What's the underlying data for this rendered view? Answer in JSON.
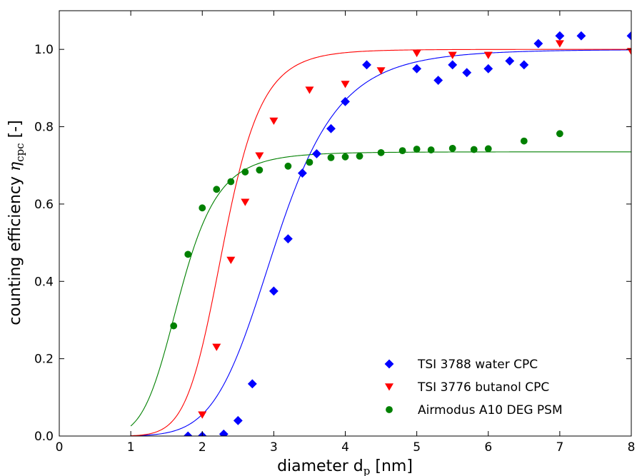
{
  "chart_data": {
    "type": "scatter",
    "xlabel": "diameter d",
    "xlabel_sub": "p",
    "xlabel_unit": " [nm]",
    "ylabel": "counting efficiency ",
    "ylabel_sym": "η",
    "ylabel_sub": "cpc",
    "ylabel_unit": " [-]",
    "xlim": [
      0,
      8
    ],
    "ylim": [
      0,
      1.1
    ],
    "xticks": [
      0,
      1,
      2,
      3,
      4,
      5,
      6,
      7,
      8
    ],
    "yticks": [
      0.0,
      0.2,
      0.4,
      0.6,
      0.8,
      1.0
    ],
    "xtick_labels": [
      "0",
      "1",
      "2",
      "3",
      "4",
      "5",
      "6",
      "7",
      "8"
    ],
    "ytick_labels": [
      "0.0",
      "0.2",
      "0.4",
      "0.6",
      "0.8",
      "1.0"
    ],
    "legend_position": "bottom-right",
    "series": [
      {
        "name": "TSI 3788 water CPC",
        "marker": "diamond",
        "color": "#0000ff",
        "x": [
          1.8,
          2.0,
          2.3,
          2.5,
          2.7,
          3.0,
          3.2,
          3.4,
          3.6,
          3.8,
          4.0,
          4.3,
          5.0,
          5.3,
          5.5,
          5.7,
          6.0,
          6.3,
          6.5,
          6.7,
          7.0,
          7.3,
          8.0
        ],
        "y": [
          0.0,
          0.0,
          0.005,
          0.04,
          0.135,
          0.375,
          0.51,
          0.68,
          0.73,
          0.795,
          0.865,
          0.96,
          0.95,
          0.92,
          0.96,
          0.94,
          0.95,
          0.97,
          0.96,
          1.015,
          1.035,
          1.035,
          1.035
        ],
        "fit": {
          "a": 1.0,
          "d50": 3.03,
          "k": 6.8
        }
      },
      {
        "name": "TSI 3776 butanol CPC",
        "marker": "triangle-down",
        "color": "#ff0000",
        "x": [
          2.0,
          2.2,
          2.4,
          2.6,
          2.8,
          3.0,
          3.5,
          4.0,
          4.5,
          5.0,
          5.5,
          6.0,
          7.0,
          8.0
        ],
        "y": [
          0.055,
          0.23,
          0.455,
          0.605,
          0.725,
          0.815,
          0.895,
          0.91,
          0.945,
          0.99,
          0.985,
          0.985,
          1.015,
          0.995
        ],
        "fit": {
          "a": 1.0,
          "d50": 2.3,
          "k": 8.6
        }
      },
      {
        "name": "Airmodus A10 DEG PSM",
        "marker": "circle",
        "color": "#008000",
        "x": [
          1.6,
          1.8,
          2.0,
          2.2,
          2.4,
          2.6,
          2.8,
          3.2,
          3.5,
          3.8,
          4.0,
          4.2,
          4.5,
          4.8,
          5.0,
          5.2,
          5.5,
          5.8,
          6.0,
          6.5,
          7.0
        ],
        "y": [
          0.285,
          0.47,
          0.59,
          0.638,
          0.658,
          0.683,
          0.688,
          0.698,
          0.708,
          0.72,
          0.722,
          0.724,
          0.733,
          0.738,
          0.742,
          0.74,
          0.744,
          0.741,
          0.743,
          0.763,
          0.782
        ],
        "fit": {
          "a": 0.735,
          "d50": 1.69,
          "k": 6.3
        }
      }
    ]
  }
}
